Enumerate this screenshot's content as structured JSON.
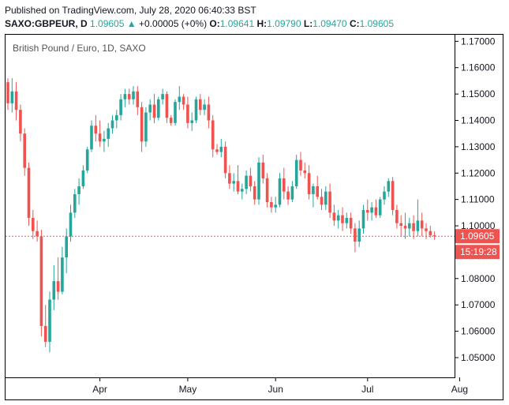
{
  "header": {
    "published": "Published on TradingView.com, July 28, 2020 06:40:33 BST",
    "symbol": "SAXO:GBPEUR, D",
    "last": "1.09605",
    "change_arrow": "▲",
    "change": "+0.00005 (+0%)",
    "o_label": "O:",
    "o_value": "1.09641",
    "h_label": "H:",
    "h_value": "1.09790",
    "l_label": "L:",
    "l_value": "1.09470",
    "c_label": "C:",
    "c_value": "1.09605"
  },
  "colors": {
    "up": "#26a69a",
    "down": "#ef5350",
    "price_line": "#ef5350",
    "axis": "#000000",
    "text": "#131722"
  },
  "chart_data": {
    "type": "candlestick",
    "title": "British Pound / Euro, 1D, SAXO",
    "ylim": [
      1.0425,
      1.1725
    ],
    "y_ticks": [
      "1.05000",
      "1.06000",
      "1.07000",
      "1.08000",
      "1.09000",
      "1.10000",
      "1.11000",
      "1.12000",
      "1.13000",
      "1.14000",
      "1.15000",
      "1.16000",
      "1.17000"
    ],
    "x_ticks": [
      {
        "label": "Apr",
        "index": 22
      },
      {
        "label": "May",
        "index": 43
      },
      {
        "label": "Jun",
        "index": 64
      },
      {
        "label": "Jul",
        "index": 86
      },
      {
        "label": "Aug",
        "index": 108
      }
    ],
    "current_price": 1.09605,
    "current_price_label": "1.09605",
    "countdown_label": "15:19:28",
    "candles": [
      [
        1.1545,
        1.156,
        1.144,
        1.1465
      ],
      [
        1.1465,
        1.156,
        1.143,
        1.151
      ],
      [
        1.151,
        1.1545,
        1.14,
        1.144
      ],
      [
        1.144,
        1.146,
        1.132,
        1.135
      ],
      [
        1.135,
        1.137,
        1.119,
        1.122
      ],
      [
        1.122,
        1.124,
        1.1,
        1.103
      ],
      [
        1.103,
        1.106,
        1.095,
        1.098
      ],
      [
        1.098,
        1.102,
        1.094,
        1.096
      ],
      [
        1.096,
        1.0985,
        1.058,
        1.062
      ],
      [
        1.062,
        1.07,
        1.054,
        1.056
      ],
      [
        1.056,
        1.075,
        1.052,
        1.072
      ],
      [
        1.072,
        1.085,
        1.068,
        1.079
      ],
      [
        1.079,
        1.088,
        1.072,
        1.075
      ],
      [
        1.075,
        1.092,
        1.074,
        1.088
      ],
      [
        1.088,
        1.099,
        1.082,
        1.096
      ],
      [
        1.096,
        1.108,
        1.094,
        1.105
      ],
      [
        1.105,
        1.114,
        1.103,
        1.112
      ],
      [
        1.112,
        1.118,
        1.108,
        1.115
      ],
      [
        1.115,
        1.123,
        1.114,
        1.121
      ],
      [
        1.121,
        1.13,
        1.12,
        1.129
      ],
      [
        1.129,
        1.14,
        1.128,
        1.138
      ],
      [
        1.138,
        1.142,
        1.132,
        1.135
      ],
      [
        1.135,
        1.14,
        1.13,
        1.132
      ],
      [
        1.132,
        1.136,
        1.128,
        1.133
      ],
      [
        1.133,
        1.139,
        1.13,
        1.137
      ],
      [
        1.137,
        1.142,
        1.135,
        1.14
      ],
      [
        1.14,
        1.144,
        1.137,
        1.142
      ],
      [
        1.142,
        1.15,
        1.14,
        1.148
      ],
      [
        1.148,
        1.152,
        1.145,
        1.15
      ],
      [
        1.15,
        1.152,
        1.146,
        1.148
      ],
      [
        1.148,
        1.153,
        1.146,
        1.151
      ],
      [
        1.151,
        1.153,
        1.142,
        1.145
      ],
      [
        1.145,
        1.147,
        1.128,
        1.132
      ],
      [
        1.132,
        1.145,
        1.13,
        1.143
      ],
      [
        1.143,
        1.148,
        1.14,
        1.146
      ],
      [
        1.146,
        1.15,
        1.139,
        1.141
      ],
      [
        1.141,
        1.149,
        1.14,
        1.148
      ],
      [
        1.148,
        1.152,
        1.146,
        1.15
      ],
      [
        1.15,
        1.151,
        1.139,
        1.141
      ],
      [
        1.141,
        1.142,
        1.138,
        1.139
      ],
      [
        1.139,
        1.148,
        1.138,
        1.147
      ],
      [
        1.147,
        1.153,
        1.144,
        1.149
      ],
      [
        1.149,
        1.15,
        1.144,
        1.146
      ],
      [
        1.146,
        1.149,
        1.137,
        1.139
      ],
      [
        1.139,
        1.143,
        1.136,
        1.14
      ],
      [
        1.14,
        1.149,
        1.139,
        1.148
      ],
      [
        1.148,
        1.15,
        1.142,
        1.144
      ],
      [
        1.144,
        1.148,
        1.142,
        1.146
      ],
      [
        1.146,
        1.149,
        1.137,
        1.14
      ],
      [
        1.14,
        1.142,
        1.126,
        1.129
      ],
      [
        1.129,
        1.131,
        1.127,
        1.128
      ],
      [
        1.128,
        1.133,
        1.126,
        1.13
      ],
      [
        1.13,
        1.132,
        1.118,
        1.12
      ],
      [
        1.12,
        1.123,
        1.114,
        1.116
      ],
      [
        1.116,
        1.12,
        1.113,
        1.117
      ],
      [
        1.117,
        1.123,
        1.112,
        1.113
      ],
      [
        1.113,
        1.116,
        1.11,
        1.114
      ],
      [
        1.114,
        1.121,
        1.112,
        1.119
      ],
      [
        1.119,
        1.122,
        1.113,
        1.115
      ],
      [
        1.115,
        1.117,
        1.108,
        1.11
      ],
      [
        1.11,
        1.126,
        1.108,
        1.124
      ],
      [
        1.124,
        1.127,
        1.116,
        1.118
      ],
      [
        1.118,
        1.12,
        1.107,
        1.109
      ],
      [
        1.109,
        1.111,
        1.105,
        1.107
      ],
      [
        1.107,
        1.111,
        1.105,
        1.108
      ],
      [
        1.108,
        1.12,
        1.107,
        1.118
      ],
      [
        1.118,
        1.122,
        1.11,
        1.113
      ],
      [
        1.113,
        1.115,
        1.108,
        1.11
      ],
      [
        1.11,
        1.117,
        1.109,
        1.115
      ],
      [
        1.115,
        1.127,
        1.114,
        1.125
      ],
      [
        1.125,
        1.128,
        1.119,
        1.121
      ],
      [
        1.121,
        1.124,
        1.118,
        1.12
      ],
      [
        1.12,
        1.123,
        1.11,
        1.112
      ],
      [
        1.112,
        1.116,
        1.107,
        1.115
      ],
      [
        1.115,
        1.119,
        1.11,
        1.111
      ],
      [
        1.111,
        1.114,
        1.106,
        1.108
      ],
      [
        1.108,
        1.115,
        1.106,
        1.113
      ],
      [
        1.113,
        1.116,
        1.103,
        1.105
      ],
      [
        1.105,
        1.108,
        1.1,
        1.102
      ],
      [
        1.102,
        1.106,
        1.099,
        1.104
      ],
      [
        1.104,
        1.107,
        1.098,
        1.101
      ],
      [
        1.101,
        1.105,
        1.099,
        1.103
      ],
      [
        1.103,
        1.105,
        1.097,
        1.099
      ],
      [
        1.099,
        1.101,
        1.09,
        1.094
      ],
      [
        1.094,
        1.102,
        1.092,
        1.099
      ],
      [
        1.099,
        1.108,
        1.097,
        1.106
      ],
      [
        1.106,
        1.11,
        1.102,
        1.105
      ],
      [
        1.105,
        1.109,
        1.102,
        1.107
      ],
      [
        1.107,
        1.11,
        1.103,
        1.104
      ],
      [
        1.104,
        1.111,
        1.103,
        1.11
      ],
      [
        1.11,
        1.115,
        1.108,
        1.113
      ],
      [
        1.113,
        1.118,
        1.111,
        1.117
      ],
      [
        1.117,
        1.1185,
        1.104,
        1.106
      ],
      [
        1.106,
        1.108,
        1.099,
        1.101
      ],
      [
        1.101,
        1.104,
        1.096,
        1.1
      ],
      [
        1.1,
        1.105,
        1.095,
        1.099
      ],
      [
        1.099,
        1.103,
        1.096,
        1.101
      ],
      [
        1.101,
        1.104,
        1.095,
        1.098
      ],
      [
        1.098,
        1.11,
        1.096,
        1.102
      ],
      [
        1.102,
        1.105,
        1.096,
        1.099
      ],
      [
        1.099,
        1.101,
        1.095,
        1.098
      ],
      [
        1.098,
        1.1,
        1.0955,
        1.0964
      ],
      [
        1.0964,
        1.0979,
        1.0947,
        1.09605
      ]
    ]
  }
}
